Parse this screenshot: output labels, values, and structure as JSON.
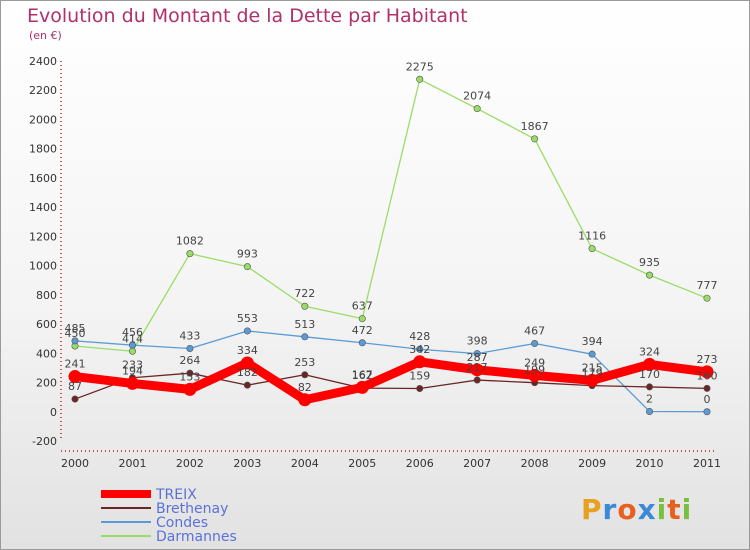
{
  "chart_data": {
    "type": "line",
    "title": "Evolution du Montant de la Dette par Habitant",
    "subtitle": "(en €)",
    "categories": [
      "2000",
      "2001",
      "2002",
      "2003",
      "2004",
      "2005",
      "2006",
      "2007",
      "2008",
      "2009",
      "2010",
      "2011"
    ],
    "ylim": [
      -200,
      2400
    ],
    "yticks": [
      -200,
      0,
      200,
      400,
      600,
      800,
      1000,
      1200,
      1400,
      1600,
      1800,
      2000,
      2200,
      2400
    ],
    "grid": false,
    "legend_position": "bottom-left",
    "series": [
      {
        "name": "Darmannes",
        "color": "#99dd66",
        "values": [
          450,
          414,
          1082,
          993,
          722,
          637,
          2275,
          2074,
          1867,
          1116,
          935,
          777
        ]
      },
      {
        "name": "Condes",
        "color": "#5b9bd5",
        "values": [
          485,
          456,
          433,
          553,
          513,
          472,
          428,
          398,
          467,
          394,
          2,
          0
        ]
      },
      {
        "name": "Brethenay",
        "color": "#6b2525",
        "values": [
          87,
          233,
          264,
          182,
          253,
          162,
          159,
          217,
          199,
          179,
          170,
          160
        ]
      },
      {
        "name": "TREIX",
        "color": "#ff0000",
        "values": [
          241,
          194,
          153,
          334,
          82,
          167,
          342,
          287,
          249,
          215,
          324,
          273
        ]
      }
    ]
  },
  "brand": {
    "letters": [
      "P",
      "r",
      "o",
      "x",
      "i",
      "t",
      "i"
    ],
    "colors": [
      "#e8a020",
      "#3a8ad8",
      "#e86020",
      "#3a8ad8",
      "#7ac040",
      "#e86020",
      "#7ac040"
    ]
  }
}
